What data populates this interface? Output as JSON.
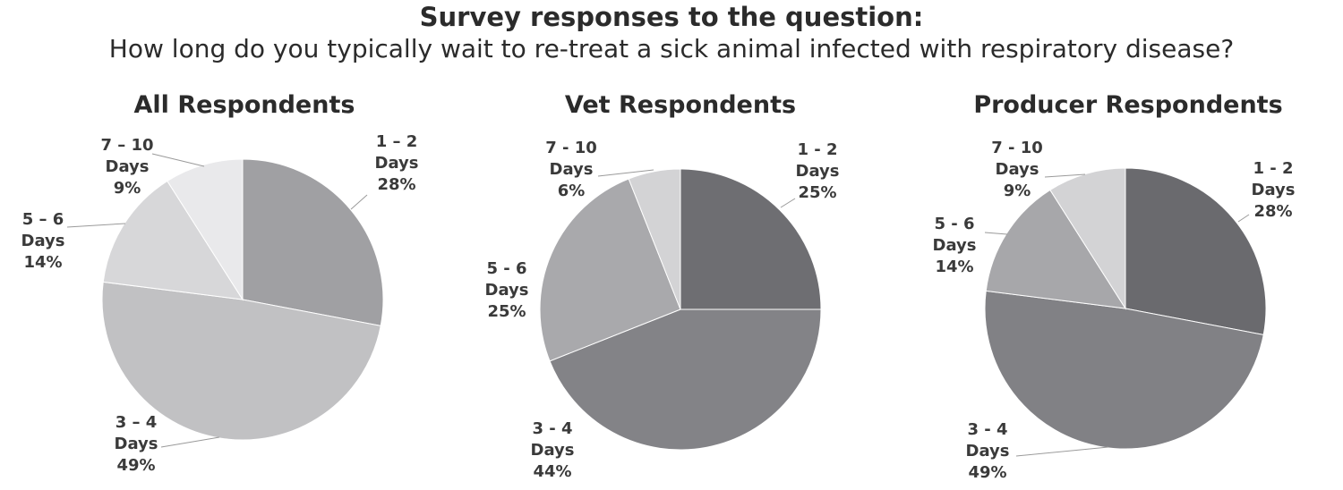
{
  "title": "Survey responses to the question:",
  "subtitle": "How long do you typically wait to re-treat a sick animal infected with respiratory disease?",
  "chart_data": [
    {
      "type": "pie",
      "title": "All Respondents",
      "categories": [
        "1 – 2\nDays",
        "3 – 4\nDays",
        "5 – 6\nDays",
        "7 – 10\nDays"
      ],
      "values": [
        28,
        49,
        14,
        9
      ],
      "value_labels": [
        "28%",
        "49%",
        "14%",
        "9%"
      ],
      "colors": [
        "#a0a0a3",
        "#c1c1c3",
        "#d7d7d9",
        "#e9e9eb"
      ]
    },
    {
      "type": "pie",
      "title": "Vet Respondents",
      "categories": [
        "1 - 2\nDays",
        "3 - 4\nDays",
        "5 - 6\nDays",
        "7 - 10\nDays"
      ],
      "values": [
        25,
        44,
        25,
        6
      ],
      "value_labels": [
        "25%",
        "44%",
        "25%",
        "6%"
      ],
      "colors": [
        "#6e6e72",
        "#838387",
        "#a9a9ac",
        "#d3d3d5"
      ]
    },
    {
      "type": "pie",
      "title": "Producer Respondents",
      "categories": [
        "1 - 2\nDays",
        "3 - 4\nDays",
        "5 - 6\nDays",
        "7 - 10\nDays"
      ],
      "values": [
        28,
        49,
        14,
        9
      ],
      "value_labels": [
        "28%",
        "49%",
        "14%",
        "9%"
      ],
      "colors": [
        "#6a6a6e",
        "#818185",
        "#a7a7aa",
        "#d3d3d5"
      ]
    }
  ]
}
